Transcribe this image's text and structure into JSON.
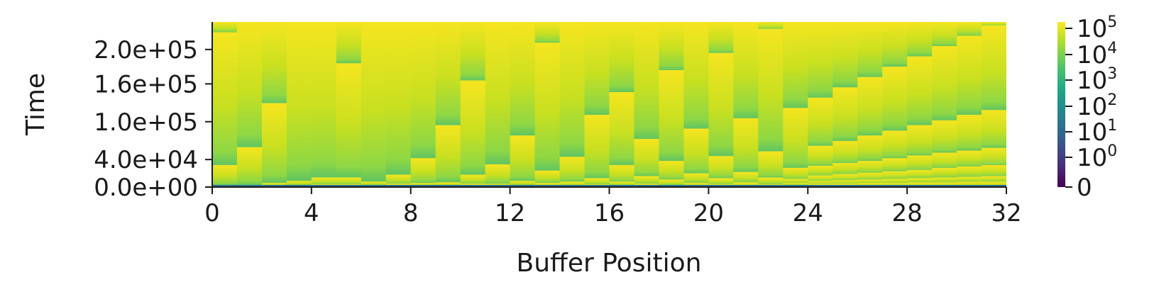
{
  "chart_data": {
    "type": "heatmap",
    "title": "",
    "xlabel": "Buffer Position",
    "ylabel": "Time",
    "xlim": [
      0,
      32
    ],
    "ylim": [
      0,
      240000
    ],
    "x_ticks": [
      0,
      4,
      8,
      12,
      16,
      20,
      24,
      28,
      32
    ],
    "x_tick_labels": [
      "0",
      "4",
      "8",
      "12",
      "16",
      "20",
      "24",
      "28",
      "32"
    ],
    "y_ticks": [
      0,
      40000,
      80000,
      120000,
      160000,
      200000
    ],
    "y_tick_labels": [
      "0.0e+00",
      "4.0e+04",
      "1.0e+05",
      "1.6e+05",
      "2.0e+05"
    ],
    "y_label_values": [
      0,
      40000,
      95000,
      150000,
      200000
    ],
    "colorbar": {
      "scale": "symlog",
      "colormap": "viridis",
      "tick_labels": [
        {
          "base": "0",
          "exp": ""
        },
        {
          "base": "10",
          "exp": "0"
        },
        {
          "base": "10",
          "exp": "1"
        },
        {
          "base": "10",
          "exp": "2"
        },
        {
          "base": "10",
          "exp": "3"
        },
        {
          "base": "10",
          "exp": "4"
        },
        {
          "base": "10",
          "exp": "5"
        }
      ]
    },
    "columns": [
      {
        "x": 0,
        "steps": [
          225000,
          32000,
          3000
        ]
      },
      {
        "x": 1,
        "steps": [
          58000,
          3000
        ]
      },
      {
        "x": 2,
        "steps": [
          122000,
          6000,
          2000
        ]
      },
      {
        "x": 3,
        "steps": [
          9000,
          3000
        ]
      },
      {
        "x": 4,
        "steps": [
          14000,
          4000
        ]
      },
      {
        "x": 5,
        "steps": [
          180000,
          14000,
          4000
        ]
      },
      {
        "x": 6,
        "steps": [
          8000,
          3000
        ]
      },
      {
        "x": 7,
        "steps": [
          18000,
          5000
        ]
      },
      {
        "x": 8,
        "steps": [
          42000,
          6000,
          2000
        ]
      },
      {
        "x": 9,
        "steps": [
          90000,
          7000,
          2000
        ]
      },
      {
        "x": 10,
        "steps": [
          155000,
          18000,
          5000
        ]
      },
      {
        "x": 11,
        "steps": [
          33000,
          5000,
          2000
        ]
      },
      {
        "x": 12,
        "steps": [
          75000,
          9000,
          3000
        ]
      },
      {
        "x": 13,
        "steps": [
          210000,
          24000,
          6000
        ]
      },
      {
        "x": 14,
        "steps": [
          44000,
          8000,
          2000
        ]
      },
      {
        "x": 15,
        "steps": [
          105000,
          13000,
          4000
        ]
      },
      {
        "x": 16,
        "steps": [
          138000,
          32000,
          8000,
          3000
        ]
      },
      {
        "x": 17,
        "steps": [
          70000,
          16000,
          5000
        ]
      },
      {
        "x": 18,
        "steps": [
          170000,
          38000,
          11000,
          3000
        ]
      },
      {
        "x": 19,
        "steps": [
          85000,
          20000,
          6000
        ]
      },
      {
        "x": 20,
        "steps": [
          195000,
          45000,
          13000,
          4000
        ]
      },
      {
        "x": 21,
        "steps": [
          100000,
          22000,
          7000
        ]
      },
      {
        "x": 22,
        "steps": [
          230000,
          52000,
          14000,
          4000
        ]
      },
      {
        "x": 23,
        "steps": [
          115000,
          28000,
          12000,
          6000,
          3000
        ]
      },
      {
        "x": 24,
        "steps": [
          130000,
          60000,
          31000,
          17000,
          9000,
          5000
        ]
      },
      {
        "x": 25,
        "steps": [
          145000,
          67000,
          35000,
          19000,
          10000,
          5000
        ]
      },
      {
        "x": 26,
        "steps": [
          160000,
          75000,
          38000,
          21000,
          11000,
          6000
        ]
      },
      {
        "x": 27,
        "steps": [
          175000,
          82000,
          42000,
          23000,
          12000,
          6000
        ]
      },
      {
        "x": 28,
        "steps": [
          190000,
          90000,
          46000,
          25000,
          13000,
          7000
        ]
      },
      {
        "x": 29,
        "steps": [
          205000,
          97000,
          50000,
          28000,
          14000,
          7000
        ]
      },
      {
        "x": 30,
        "steps": [
          220000,
          105000,
          53000,
          30000,
          15000,
          8000
        ]
      },
      {
        "x": 31,
        "steps": [
          235000,
          112000,
          57000,
          32000,
          16000,
          8000
        ]
      }
    ]
  }
}
